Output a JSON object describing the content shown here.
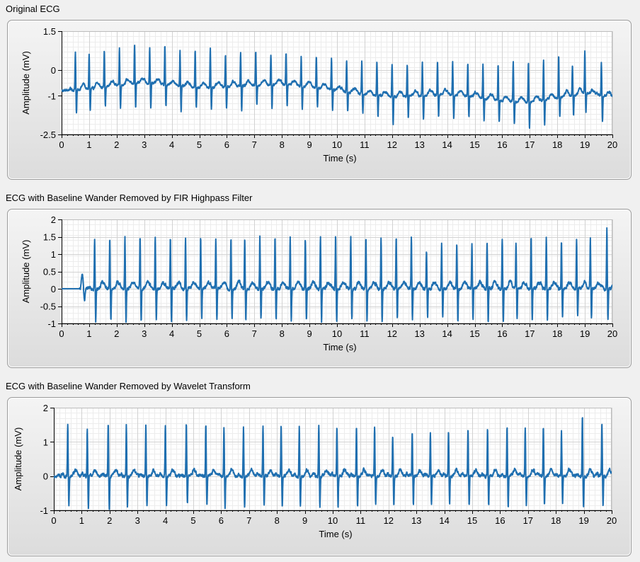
{
  "chart_data": [
    {
      "type": "line",
      "title": "Original ECG",
      "xlabel": "Time (s)",
      "ylabel": "Amplitude (mV)",
      "xlim": [
        0,
        20
      ],
      "ylim": [
        -2.5,
        1.5
      ],
      "xticks": [
        0,
        1,
        2,
        3,
        4,
        5,
        6,
        7,
        8,
        9,
        10,
        11,
        12,
        13,
        14,
        15,
        16,
        17,
        18,
        19,
        20
      ],
      "yticks": [
        -2.5,
        -1,
        0,
        1.5
      ],
      "ytick_labels": [
        "-2.5",
        "-1",
        "0",
        "1.5"
      ],
      "grid": true,
      "line_color": "#1f6fb0",
      "baseline": [
        [
          0,
          -0.8
        ],
        [
          1,
          -0.75
        ],
        [
          2,
          -0.6
        ],
        [
          3,
          -0.5
        ],
        [
          4,
          -0.6
        ],
        [
          5,
          -0.7
        ],
        [
          6,
          -0.65
        ],
        [
          7,
          -0.6
        ],
        [
          8,
          -0.55
        ],
        [
          9,
          -0.65
        ],
        [
          10,
          -0.8
        ],
        [
          11,
          -0.95
        ],
        [
          12,
          -1.05
        ],
        [
          13,
          -1.0
        ],
        [
          14,
          -0.95
        ],
        [
          15,
          -1.05
        ],
        [
          16,
          -1.2
        ],
        [
          17,
          -1.25
        ],
        [
          18,
          -1.1
        ],
        [
          19,
          -0.9
        ],
        [
          20,
          -1.05
        ]
      ],
      "beats": [
        {
          "t": 0.5,
          "peak": 0.7,
          "trough": -1.7
        },
        {
          "t": 1.0,
          "peak": 0.6,
          "trough": -1.6
        },
        {
          "t": 1.55,
          "peak": 0.8,
          "trough": -1.4
        },
        {
          "t": 2.1,
          "peak": 0.85,
          "trough": -1.5
        },
        {
          "t": 2.65,
          "peak": 1.0,
          "trough": -1.5
        },
        {
          "t": 3.2,
          "peak": 0.85,
          "trough": -1.5
        },
        {
          "t": 3.75,
          "peak": 0.95,
          "trough": -1.45
        },
        {
          "t": 4.3,
          "peak": 0.75,
          "trough": -1.6
        },
        {
          "t": 4.85,
          "peak": 0.75,
          "trough": -1.45
        },
        {
          "t": 5.4,
          "peak": 0.8,
          "trough": -1.5
        },
        {
          "t": 5.95,
          "peak": 0.6,
          "trough": -1.5
        },
        {
          "t": 6.5,
          "peak": 0.65,
          "trough": -1.55
        },
        {
          "t": 7.05,
          "peak": 0.7,
          "trough": -1.35
        },
        {
          "t": 7.6,
          "peak": 0.6,
          "trough": -1.45
        },
        {
          "t": 8.15,
          "peak": 0.65,
          "trough": -1.4
        },
        {
          "t": 8.7,
          "peak": 0.55,
          "trough": -1.55
        },
        {
          "t": 9.25,
          "peak": 0.5,
          "trough": -1.45
        },
        {
          "t": 9.8,
          "peak": 0.45,
          "trough": -1.55
        },
        {
          "t": 10.35,
          "peak": 0.4,
          "trough": -1.6
        },
        {
          "t": 10.9,
          "peak": 0.35,
          "trough": -1.7
        },
        {
          "t": 11.45,
          "peak": 0.35,
          "trough": -1.8
        },
        {
          "t": 12.0,
          "peak": 0.2,
          "trough": -2.1
        },
        {
          "t": 12.55,
          "peak": 0.25,
          "trough": -1.9
        },
        {
          "t": 13.1,
          "peak": 0.3,
          "trough": -1.95
        },
        {
          "t": 13.65,
          "peak": 0.35,
          "trough": -1.8
        },
        {
          "t": 14.2,
          "peak": 0.3,
          "trough": -1.85
        },
        {
          "t": 14.75,
          "peak": 0.25,
          "trough": -1.85
        },
        {
          "t": 15.3,
          "peak": 0.25,
          "trough": -1.95
        },
        {
          "t": 15.85,
          "peak": 0.2,
          "trough": -2.05
        },
        {
          "t": 16.4,
          "peak": 0.3,
          "trough": -2.1
        },
        {
          "t": 16.95,
          "peak": 0.3,
          "trough": -2.25
        },
        {
          "t": 17.5,
          "peak": 0.4,
          "trough": -2.1
        },
        {
          "t": 18.05,
          "peak": 0.5,
          "trough": -1.85
        },
        {
          "t": 18.55,
          "peak": 0.2,
          "trough": -1.75
        },
        {
          "t": 19.0,
          "peak": 0.75,
          "trough": -1.6
        },
        {
          "t": 19.6,
          "peak": 0.3,
          "trough": -1.95
        }
      ]
    },
    {
      "type": "line",
      "title": "ECG with Baseline Wander Removed by FIR Highpass Filter",
      "xlabel": "Time (s)",
      "ylabel": "Amplitude (mV)",
      "xlim": [
        0,
        20
      ],
      "ylim": [
        -1,
        2
      ],
      "xticks": [
        0,
        1,
        2,
        3,
        4,
        5,
        6,
        7,
        8,
        9,
        10,
        11,
        12,
        13,
        14,
        15,
        16,
        17,
        18,
        19,
        20
      ],
      "yticks": [
        -1,
        -0.5,
        0,
        0.5,
        1,
        1.5,
        2
      ],
      "ytick_labels": [
        "-1",
        "-0.5",
        "0",
        "0.5",
        "1",
        "1.5",
        "2"
      ],
      "grid": true,
      "line_color": "#1f6fb0",
      "startup_flat_until": 0.65,
      "startup_bump": {
        "t": 0.75,
        "peak": 0.42,
        "trough": -0.35
      },
      "baseline": [
        [
          0,
          0
        ],
        [
          20,
          0
        ]
      ],
      "beats": [
        {
          "t": 1.2,
          "peak": 1.45,
          "trough": -0.95
        },
        {
          "t": 1.75,
          "peak": 1.45,
          "trough": -0.9
        },
        {
          "t": 2.3,
          "peak": 1.5,
          "trough": -0.95
        },
        {
          "t": 2.85,
          "peak": 1.5,
          "trough": -0.95
        },
        {
          "t": 3.4,
          "peak": 1.5,
          "trough": -0.9
        },
        {
          "t": 3.95,
          "peak": 1.5,
          "trough": -0.95
        },
        {
          "t": 4.5,
          "peak": 1.5,
          "trough": -0.9
        },
        {
          "t": 5.05,
          "peak": 1.5,
          "trough": -0.9
        },
        {
          "t": 5.6,
          "peak": 1.45,
          "trough": -0.9
        },
        {
          "t": 6.15,
          "peak": 1.5,
          "trough": -0.9
        },
        {
          "t": 6.65,
          "peak": 1.45,
          "trough": -0.9
        },
        {
          "t": 7.2,
          "peak": 1.5,
          "trough": -0.85
        },
        {
          "t": 7.75,
          "peak": 1.45,
          "trough": -0.9
        },
        {
          "t": 8.3,
          "peak": 1.5,
          "trough": -0.9
        },
        {
          "t": 8.85,
          "peak": 1.45,
          "trough": -0.9
        },
        {
          "t": 9.4,
          "peak": 1.5,
          "trough": -0.9
        },
        {
          "t": 9.95,
          "peak": 1.5,
          "trough": -0.95
        },
        {
          "t": 10.5,
          "peak": 1.5,
          "trough": -0.9
        },
        {
          "t": 11.05,
          "peak": 1.45,
          "trough": -0.95
        },
        {
          "t": 11.6,
          "peak": 1.45,
          "trough": -0.95
        },
        {
          "t": 12.15,
          "peak": 1.45,
          "trough": -0.85
        },
        {
          "t": 12.7,
          "peak": 1.5,
          "trough": -0.85
        },
        {
          "t": 13.25,
          "peak": 1.1,
          "trough": -0.85
        },
        {
          "t": 13.8,
          "peak": 1.3,
          "trough": -0.85
        },
        {
          "t": 14.35,
          "peak": 1.3,
          "trough": -0.9
        },
        {
          "t": 14.9,
          "peak": 1.3,
          "trough": -0.9
        },
        {
          "t": 15.45,
          "peak": 1.35,
          "trough": -0.95
        },
        {
          "t": 16.0,
          "peak": 1.4,
          "trough": -0.95
        },
        {
          "t": 16.5,
          "peak": 1.35,
          "trough": -0.9
        },
        {
          "t": 17.05,
          "peak": 1.5,
          "trough": -0.95
        },
        {
          "t": 17.6,
          "peak": 1.45,
          "trough": -0.9
        },
        {
          "t": 18.15,
          "peak": 1.35,
          "trough": -0.85
        },
        {
          "t": 18.7,
          "peak": 1.4,
          "trough": -0.8
        },
        {
          "t": 19.2,
          "peak": 1.45,
          "trough": -0.85
        },
        {
          "t": 19.8,
          "peak": 1.75,
          "trough": -0.9
        }
      ]
    },
    {
      "type": "line",
      "title": "ECG with Baseline Wander Removed by Wavelet Transform",
      "xlabel": "Time (s)",
      "ylabel": "Amplitude (mV)",
      "xlim": [
        0,
        20
      ],
      "ylim": [
        -1,
        2
      ],
      "xticks": [
        0,
        1,
        2,
        3,
        4,
        5,
        6,
        7,
        8,
        9,
        10,
        11,
        12,
        13,
        14,
        15,
        16,
        17,
        18,
        19,
        20
      ],
      "yticks": [
        -1,
        0,
        1,
        2
      ],
      "ytick_labels": [
        "-1",
        "0",
        "1",
        "2"
      ],
      "grid": true,
      "line_color": "#1f6fb0",
      "baseline": [
        [
          0,
          0
        ],
        [
          20,
          0
        ]
      ],
      "beats": [
        {
          "t": 0.5,
          "peak": 1.5,
          "trough": -0.85
        },
        {
          "t": 1.2,
          "peak": 1.4,
          "trough": -0.95
        },
        {
          "t": 1.95,
          "peak": 1.5,
          "trough": -0.95
        },
        {
          "t": 2.6,
          "peak": 1.5,
          "trough": -0.9
        },
        {
          "t": 3.3,
          "peak": 1.5,
          "trough": -0.9
        },
        {
          "t": 4.0,
          "peak": 1.45,
          "trough": -0.85
        },
        {
          "t": 4.75,
          "peak": 1.55,
          "trough": -0.85
        },
        {
          "t": 5.45,
          "peak": 1.5,
          "trough": -0.9
        },
        {
          "t": 6.1,
          "peak": 1.45,
          "trough": -0.9
        },
        {
          "t": 6.8,
          "peak": 1.45,
          "trough": -0.9
        },
        {
          "t": 7.5,
          "peak": 1.4,
          "trough": -0.9
        },
        {
          "t": 8.15,
          "peak": 1.45,
          "trough": -0.9
        },
        {
          "t": 8.8,
          "peak": 1.45,
          "trough": -0.9
        },
        {
          "t": 9.5,
          "peak": 1.5,
          "trough": -0.9
        },
        {
          "t": 10.15,
          "peak": 1.45,
          "trough": -0.9
        },
        {
          "t": 10.85,
          "peak": 1.45,
          "trough": -0.9
        },
        {
          "t": 11.5,
          "peak": 1.45,
          "trough": -0.85
        },
        {
          "t": 12.15,
          "peak": 1.2,
          "trough": -0.85
        },
        {
          "t": 12.85,
          "peak": 1.3,
          "trough": -0.85
        },
        {
          "t": 13.5,
          "peak": 1.3,
          "trough": -0.85
        },
        {
          "t": 14.15,
          "peak": 1.3,
          "trough": -0.85
        },
        {
          "t": 14.85,
          "peak": 1.35,
          "trough": -0.9
        },
        {
          "t": 15.55,
          "peak": 1.4,
          "trough": -0.9
        },
        {
          "t": 16.25,
          "peak": 1.45,
          "trough": -0.9
        },
        {
          "t": 16.9,
          "peak": 1.4,
          "trough": -0.85
        },
        {
          "t": 17.55,
          "peak": 1.4,
          "trough": -0.85
        },
        {
          "t": 18.2,
          "peak": 1.3,
          "trough": -0.8
        },
        {
          "t": 18.95,
          "peak": 1.8,
          "trough": -0.95
        },
        {
          "t": 19.65,
          "peak": 1.55,
          "trough": -0.9
        }
      ]
    }
  ]
}
